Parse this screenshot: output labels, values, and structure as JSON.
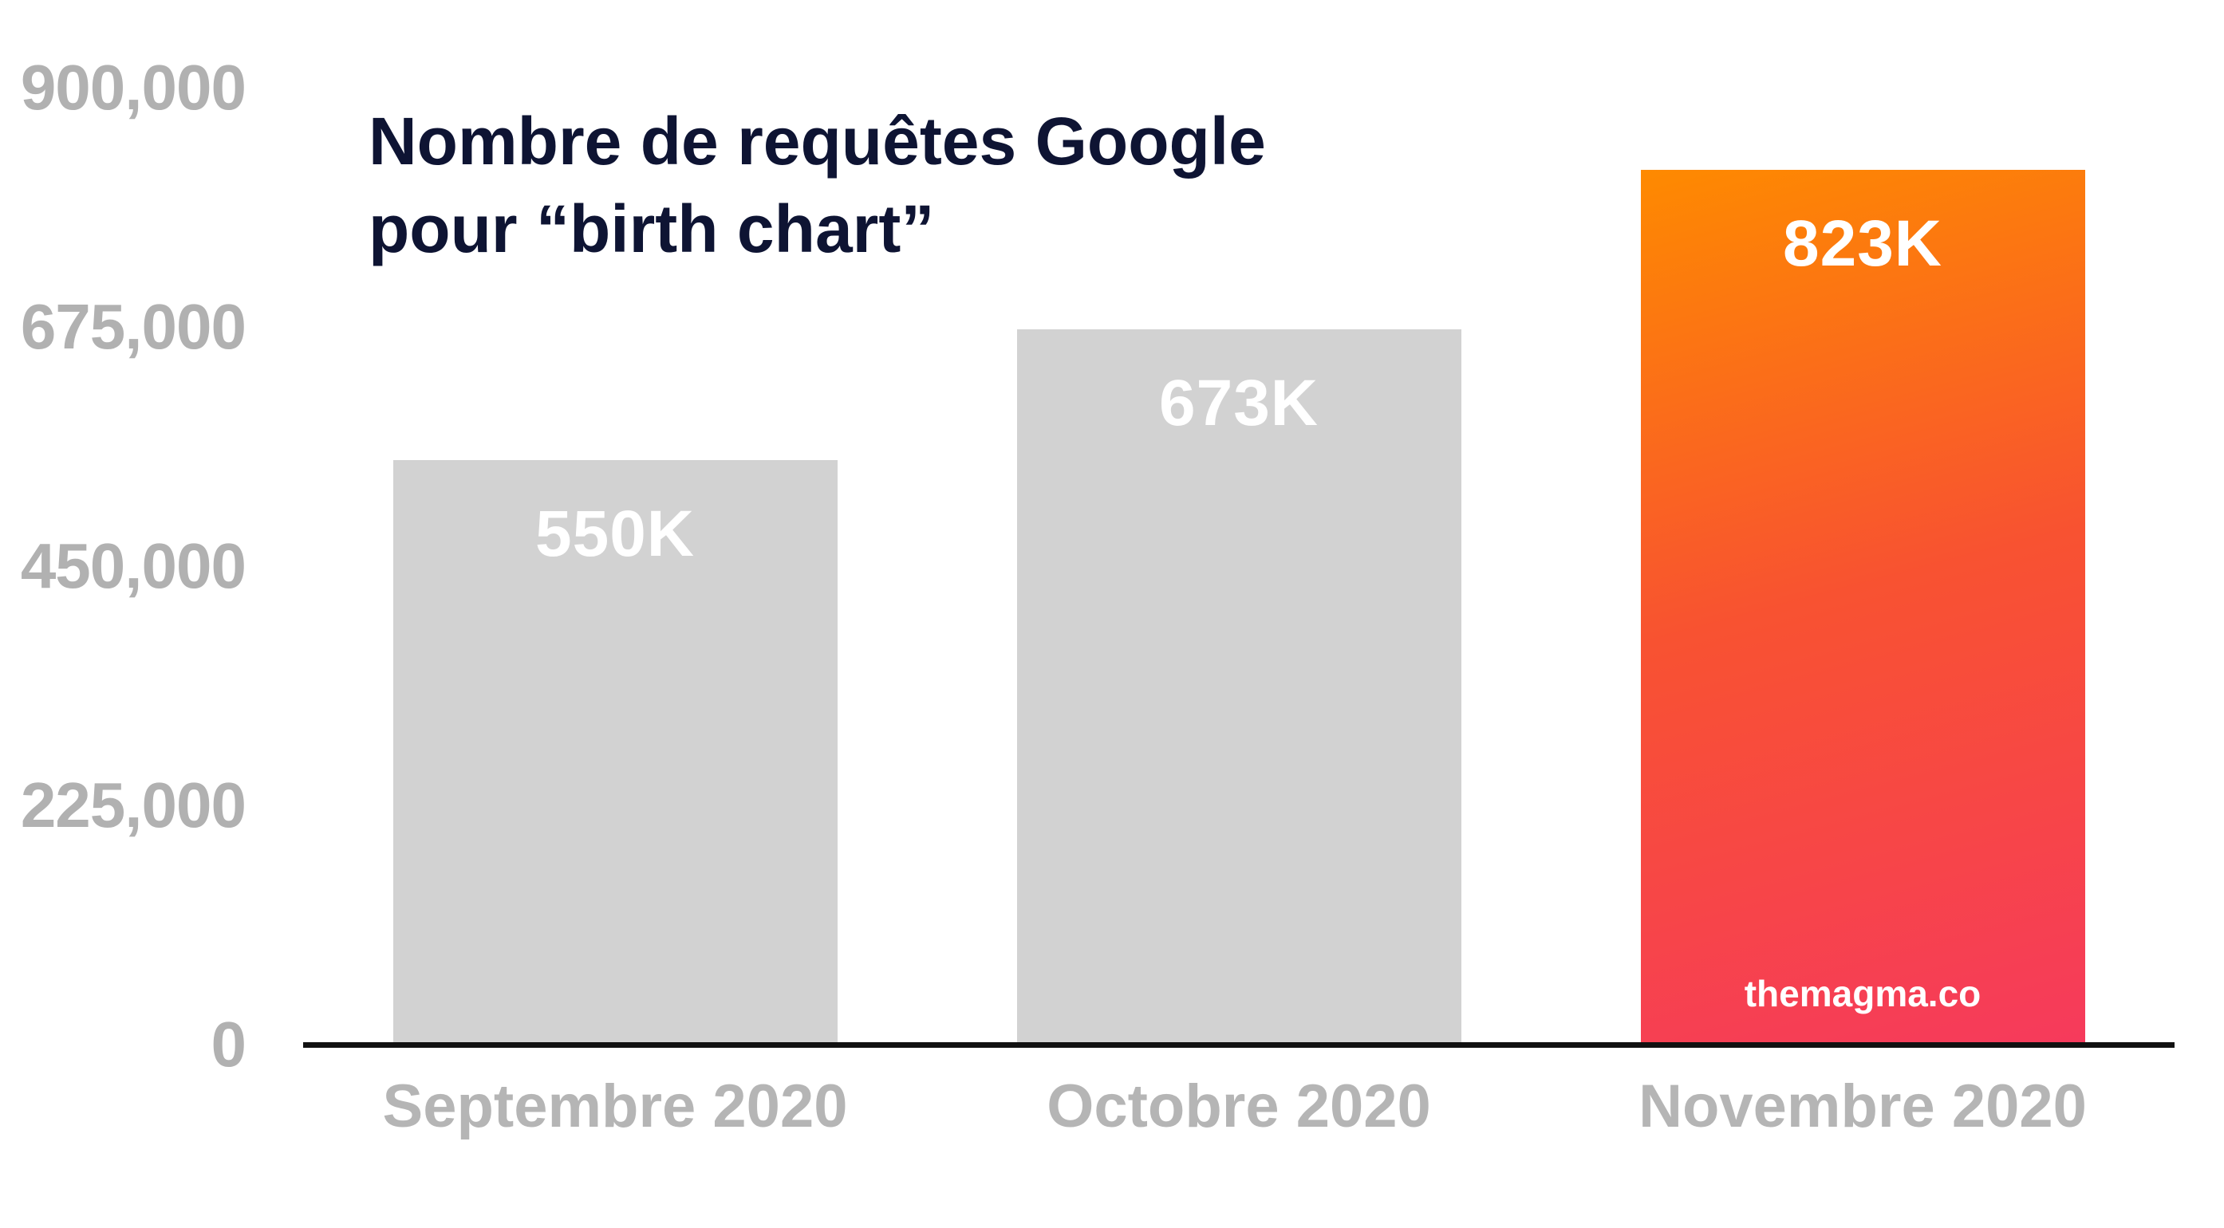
{
  "chart_data": {
    "type": "bar",
    "title_lines": [
      "Nombre de requêtes Google",
      "pour “birth chart”"
    ],
    "categories": [
      "Septembre 2020",
      "Octobre 2020",
      "Novembre 2020"
    ],
    "values": [
      550000,
      673000,
      823000
    ],
    "bar_labels": [
      "550K",
      "673K",
      "823K"
    ],
    "highlight_index": 2,
    "y_ticks": [
      {
        "value": 900000,
        "label": "900,000"
      },
      {
        "value": 675000,
        "label": "675,000"
      },
      {
        "value": 450000,
        "label": "450,000"
      },
      {
        "value": 225000,
        "label": "225,000"
      },
      {
        "value": 0,
        "label": "0"
      }
    ],
    "ylim": [
      0,
      900000
    ],
    "grid": false,
    "legend": false
  },
  "watermark": "themagma.co",
  "colors": {
    "title": "#0e1433",
    "tick_label": "#b1b1b1",
    "x_label": "#b5b5b5",
    "bar_gray": "#d2d2d2",
    "value_label": "#ffffff",
    "axis_line": "#111111",
    "highlight_gradient": [
      "#fe8a00",
      "#f85231",
      "#f63a5c"
    ]
  }
}
